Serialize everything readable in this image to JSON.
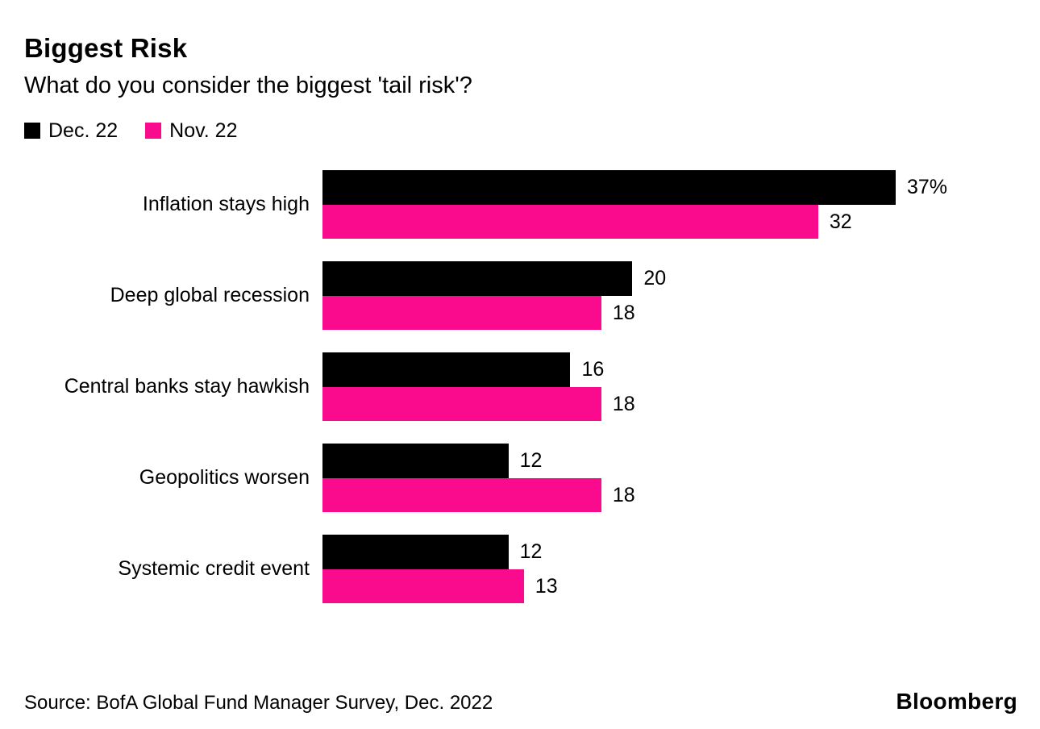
{
  "chart_data": {
    "type": "bar",
    "orientation": "horizontal",
    "title": "Biggest Risk",
    "subtitle": "What do you consider the biggest 'tail risk'?",
    "categories": [
      "Inflation stays high",
      "Deep global recession",
      "Central banks stay hawkish",
      "Geopolitics worsen",
      "Systemic credit event"
    ],
    "series": [
      {
        "name": "Dec. 22",
        "color": "#000000",
        "values": [
          37,
          20,
          16,
          12,
          12
        ],
        "value_labels": [
          "37%",
          "20",
          "16",
          "12",
          "12"
        ]
      },
      {
        "name": "Nov. 22",
        "color": "#fa0a8c",
        "values": [
          32,
          18,
          18,
          18,
          13
        ],
        "value_labels": [
          "32",
          "18",
          "18",
          "18",
          "13"
        ]
      }
    ],
    "xlim": [
      0,
      37
    ],
    "unit": "%",
    "grid": false,
    "legend_position": "top-left",
    "value_labels_shown": true
  },
  "footer": {
    "source": "Source: BofA Global Fund Manager Survey, Dec. 2022",
    "brand": "Bloomberg"
  }
}
